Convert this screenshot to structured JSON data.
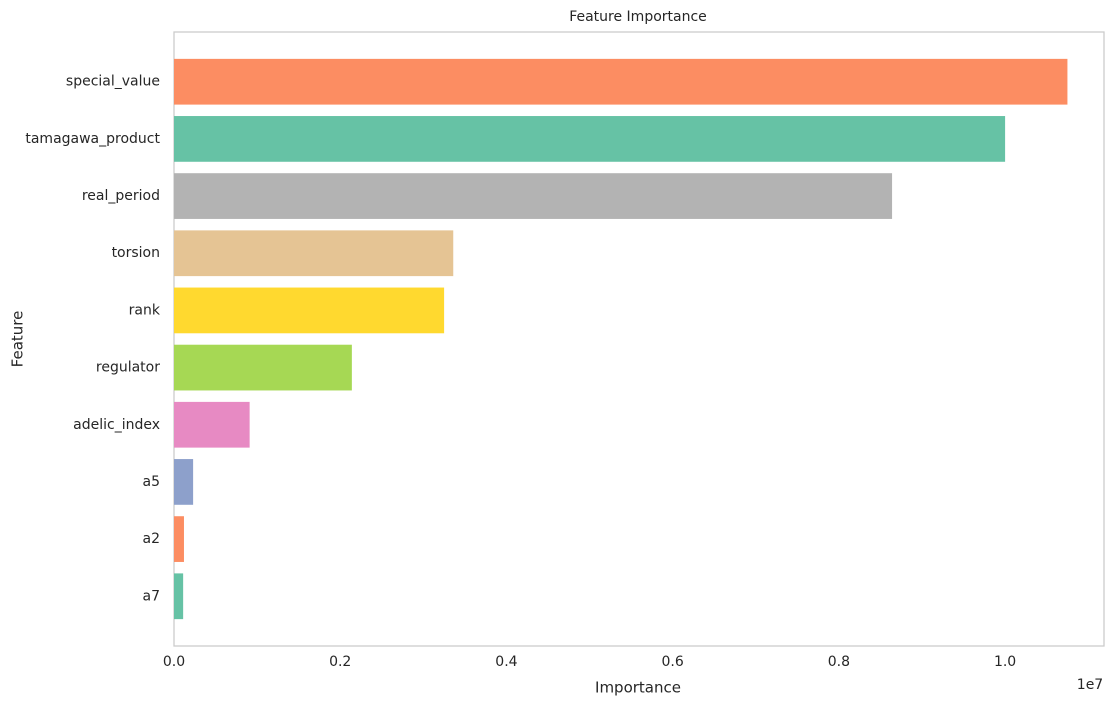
{
  "chart_data": {
    "type": "barh",
    "title": "Feature Importance",
    "x_label": "Importance",
    "y_label": "Feature",
    "categories": [
      "special_value",
      "tamagawa_product",
      "real_period",
      "torsion",
      "rank",
      "regulator",
      "adelic_index",
      "a5",
      "a2",
      "a7"
    ],
    "values": [
      10750000,
      10000000,
      8640000,
      3360000,
      3250000,
      2140000,
      910000,
      230000,
      120000,
      110000
    ],
    "colors": [
      "#fc8d62",
      "#66c2a5",
      "#b3b3b3",
      "#e5c494",
      "#ffd92f",
      "#a6d854",
      "#e78ac3",
      "#8da0cb",
      "#fc8d62",
      "#66c2a5"
    ],
    "xlim": [
      0,
      11190000
    ],
    "xticks": [
      {
        "value": 0,
        "label": "0.0"
      },
      {
        "value": 2000000,
        "label": "0.2"
      },
      {
        "value": 4000000,
        "label": "0.4"
      },
      {
        "value": 6000000,
        "label": "0.6"
      },
      {
        "value": 8000000,
        "label": "0.8"
      },
      {
        "value": 10000000,
        "label": "1.0"
      }
    ],
    "x_offset_label": "1e7",
    "grid": false
  }
}
